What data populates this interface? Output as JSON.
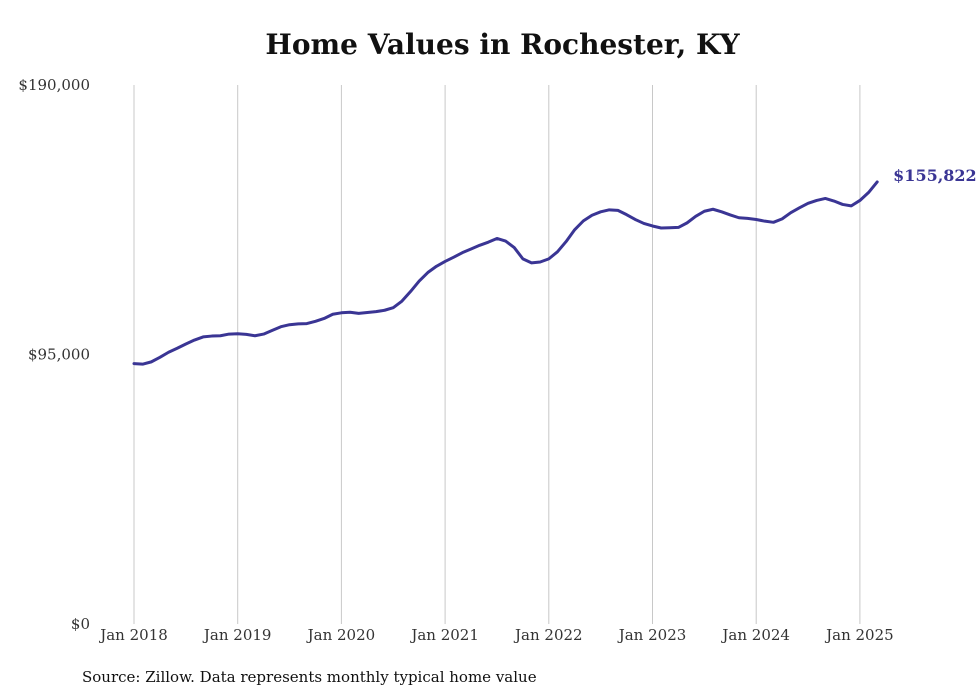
{
  "chart_data": {
    "type": "line",
    "title": "Home Values in Rochester, KY",
    "xlabel": "",
    "ylabel": "",
    "ylim": [
      0,
      190000
    ],
    "y_ticks": [
      {
        "value": 0,
        "label": "$0"
      },
      {
        "value": 95000,
        "label": "$95,000"
      },
      {
        "value": 190000,
        "label": "$190,000"
      }
    ],
    "x_ticks": [
      {
        "value": "2018-01",
        "label": "Jan 2018"
      },
      {
        "value": "2019-01",
        "label": "Jan 2019"
      },
      {
        "value": "2020-01",
        "label": "Jan 2020"
      },
      {
        "value": "2021-01",
        "label": "Jan 2021"
      },
      {
        "value": "2022-01",
        "label": "Jan 2022"
      },
      {
        "value": "2023-01",
        "label": "Jan 2023"
      },
      {
        "value": "2024-01",
        "label": "Jan 2024"
      },
      {
        "value": "2025-01",
        "label": "Jan 2025"
      }
    ],
    "grid": "vertical lines at x ticks",
    "line_color": "#3a3594",
    "end_label": "$155,822",
    "series": [
      {
        "x": [
          "2018-01",
          "2018-02",
          "2018-03",
          "2018-04",
          "2018-05",
          "2018-06",
          "2018-07",
          "2018-08",
          "2018-09",
          "2018-10",
          "2018-11",
          "2018-12",
          "2019-01",
          "2019-02",
          "2019-03",
          "2019-04",
          "2019-05",
          "2019-06",
          "2019-07",
          "2019-08",
          "2019-09",
          "2019-10",
          "2019-11",
          "2019-12",
          "2020-01",
          "2020-02",
          "2020-03",
          "2020-04",
          "2020-05",
          "2020-06",
          "2020-07",
          "2020-08",
          "2020-09",
          "2020-10",
          "2020-11",
          "2020-12",
          "2021-01",
          "2021-02",
          "2021-03",
          "2021-04",
          "2021-05",
          "2021-06",
          "2021-07",
          "2021-08",
          "2021-09",
          "2021-10",
          "2021-11",
          "2021-12",
          "2022-01",
          "2022-02",
          "2022-03",
          "2022-04",
          "2022-05",
          "2022-06",
          "2022-07",
          "2022-08",
          "2022-09",
          "2022-10",
          "2022-11",
          "2022-12",
          "2023-01",
          "2023-02",
          "2023-03",
          "2023-04",
          "2023-05",
          "2023-06",
          "2023-07",
          "2023-08",
          "2023-09",
          "2023-10",
          "2023-11",
          "2023-12",
          "2024-01",
          "2024-02",
          "2024-03",
          "2024-04",
          "2024-05",
          "2024-06",
          "2024-07",
          "2024-08",
          "2024-09",
          "2024-10",
          "2024-11",
          "2024-12",
          "2025-01",
          "2025-02",
          "2025-03"
        ],
        "y": [
          91800,
          91600,
          92400,
          94000,
          95800,
          97200,
          98700,
          100100,
          101200,
          101500,
          101600,
          102200,
          102300,
          102100,
          101600,
          102200,
          103500,
          104800,
          105500,
          105800,
          105900,
          106700,
          107700,
          109200,
          109700,
          109900,
          109500,
          109800,
          110100,
          110600,
          111500,
          113800,
          117200,
          120900,
          123900,
          126100,
          127800,
          129300,
          130900,
          132200,
          133500,
          134600,
          135900,
          135000,
          132700,
          128700,
          127300,
          127600,
          128700,
          131200,
          134800,
          139000,
          142100,
          144100,
          145300,
          146000,
          145800,
          144300,
          142600,
          141200,
          140300,
          139600,
          139700,
          139800,
          141400,
          143700,
          145500,
          146200,
          145300,
          144200,
          143200,
          143000,
          142600,
          142000,
          141600,
          142800,
          145000,
          146700,
          148300,
          149300,
          150000,
          149100,
          147900,
          147400,
          149300,
          152100,
          155822
        ]
      }
    ]
  },
  "source_note": "Source: Zillow. Data represents monthly typical home value"
}
